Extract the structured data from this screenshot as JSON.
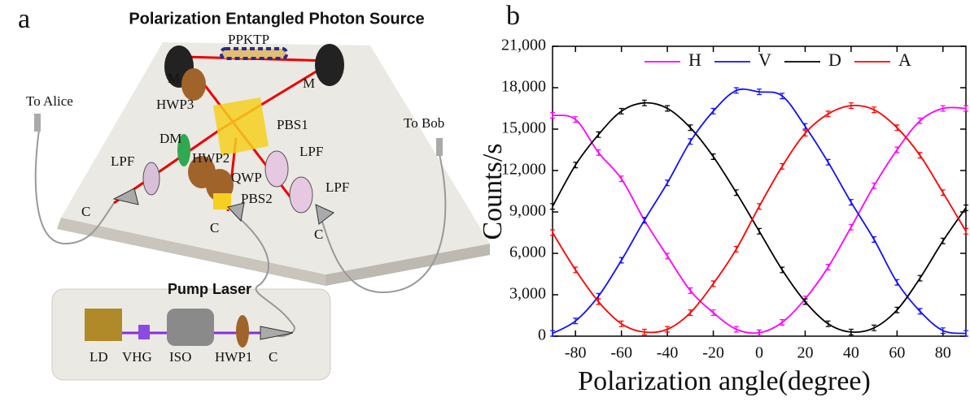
{
  "figure_a": {
    "panel_label": "a",
    "title": "Polarization Entangled Photon Source",
    "labels": [
      "M",
      "PPKTP",
      "M",
      "HWP3",
      "To Alice",
      "PBS1",
      "To Bob",
      "DM",
      "HWP2",
      "LPF",
      "LPF",
      "QWP",
      "LPF",
      "PBS2",
      "C",
      "C",
      "C",
      "Pump Laser",
      "LD",
      "VHG",
      "ISO",
      "HWP1",
      "C"
    ]
  },
  "chart_data": {
    "type": "line",
    "panel_label": "b",
    "xlabel": "Polarization angle(degree)",
    "ylabel": "Counts/s",
    "x": [
      -90,
      -80,
      -70,
      -60,
      -50,
      -40,
      -30,
      -20,
      -10,
      0,
      10,
      20,
      30,
      40,
      50,
      60,
      70,
      80,
      90
    ],
    "xlim": [
      -90,
      90
    ],
    "xticks": [
      -80,
      -60,
      -40,
      -20,
      0,
      20,
      40,
      60,
      80
    ],
    "ylim": [
      0,
      21000
    ],
    "yticks": [
      0,
      {
        "value": 3000,
        "label": "3,000"
      },
      {
        "value": 6000,
        "label": "6,000"
      },
      {
        "value": 9000,
        "label": "9,000"
      },
      {
        "value": 12000,
        "label": "12,000"
      },
      {
        "value": 15000,
        "label": "15,000"
      },
      {
        "value": 18000,
        "label": "18,000"
      },
      {
        "value": 21000,
        "label": "21,000"
      }
    ],
    "legend": "top",
    "series": [
      {
        "name": "H",
        "color": "#ff00ff",
        "values": [
          16000,
          15700,
          13300,
          11400,
          8400,
          5800,
          3300,
          1700,
          500,
          250,
          1000,
          2700,
          5000,
          7900,
          10900,
          13500,
          15600,
          16500,
          16500
        ],
        "errors": [
          200,
          200,
          200,
          200,
          200,
          200,
          200,
          200,
          200,
          200,
          200,
          200,
          200,
          200,
          200,
          200,
          200,
          200,
          200
        ]
      },
      {
        "name": "V",
        "color": "#1010ff",
        "values": [
          200,
          1100,
          2900,
          5500,
          8400,
          11100,
          14100,
          16300,
          17800,
          17700,
          17400,
          15200,
          12600,
          9700,
          7000,
          3900,
          1800,
          400,
          200
        ],
        "errors": [
          200,
          200,
          200,
          200,
          200,
          200,
          200,
          200,
          200,
          200,
          200,
          200,
          200,
          200,
          200,
          200,
          200,
          200,
          200
        ]
      },
      {
        "name": "D",
        "color": "#000000",
        "values": [
          9400,
          12400,
          14600,
          16300,
          16900,
          16500,
          15100,
          13000,
          10400,
          7600,
          4800,
          2500,
          900,
          300,
          600,
          1900,
          4200,
          6900,
          9300
        ],
        "errors": [
          200,
          200,
          200,
          200,
          200,
          200,
          200,
          200,
          200,
          200,
          200,
          200,
          200,
          200,
          200,
          200,
          200,
          200,
          200
        ]
      },
      {
        "name": "A",
        "color": "#ff0000",
        "values": [
          7500,
          4800,
          2500,
          900,
          300,
          500,
          1700,
          3800,
          6300,
          9400,
          12300,
          14700,
          16100,
          16700,
          16400,
          15100,
          13100,
          10400,
          7600
        ],
        "errors": [
          200,
          200,
          200,
          200,
          200,
          200,
          200,
          200,
          200,
          200,
          200,
          200,
          200,
          200,
          200,
          200,
          200,
          200,
          200
        ]
      }
    ]
  }
}
